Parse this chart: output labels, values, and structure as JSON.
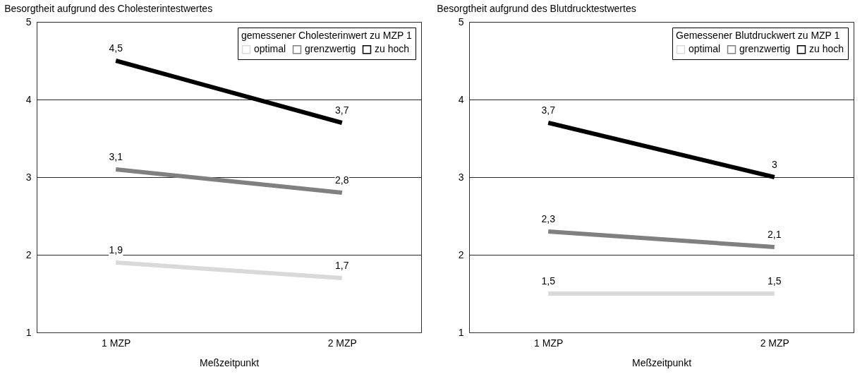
{
  "chart_data": [
    {
      "type": "line",
      "title": "Besorgtheit aufgrund des Cholesterintestwertes",
      "xlabel": "Meßzeitpunkt",
      "categories": [
        "1 MZP",
        "2 MZP"
      ],
      "ylim": [
        1,
        5
      ],
      "yticks": [
        1,
        2,
        3,
        4,
        5
      ],
      "grid": "y",
      "legend": "top right",
      "legend_title": "gemessener Cholesterinwert zu MZP 1",
      "series": [
        {
          "name": "optimal",
          "color": "#d9d9d9",
          "values": [
            1.9,
            1.7
          ],
          "value_labels": [
            "1,9",
            "1,7"
          ]
        },
        {
          "name": "grenzwertig",
          "color": "#808080",
          "values": [
            3.1,
            2.8
          ],
          "value_labels": [
            "3,1",
            "2,8"
          ]
        },
        {
          "name": "zu hoch",
          "color": "#000000",
          "values": [
            4.5,
            3.7
          ],
          "value_labels": [
            "4,5",
            "3,7"
          ]
        }
      ]
    },
    {
      "type": "line",
      "title": "Besorgtheit aufgrund des Blutdrucktestwertes",
      "xlabel": "Meßzeitpunkt",
      "categories": [
        "1 MZP",
        "2 MZP"
      ],
      "ylim": [
        1,
        5
      ],
      "yticks": [
        1,
        2,
        3,
        4,
        5
      ],
      "grid": "y",
      "legend": "top right",
      "legend_title": "Gemessener Blutdruckwert zu MZP 1",
      "series": [
        {
          "name": "optimal",
          "color": "#d9d9d9",
          "values": [
            1.5,
            1.5
          ],
          "value_labels": [
            "1,5",
            "1,5"
          ]
        },
        {
          "name": "grenzwertig",
          "color": "#808080",
          "values": [
            2.3,
            2.1
          ],
          "value_labels": [
            "2,3",
            "2,1"
          ]
        },
        {
          "name": "zu hoch",
          "color": "#000000",
          "values": [
            3.7,
            3.0
          ],
          "value_labels": [
            "3,7",
            "3"
          ]
        }
      ]
    }
  ]
}
